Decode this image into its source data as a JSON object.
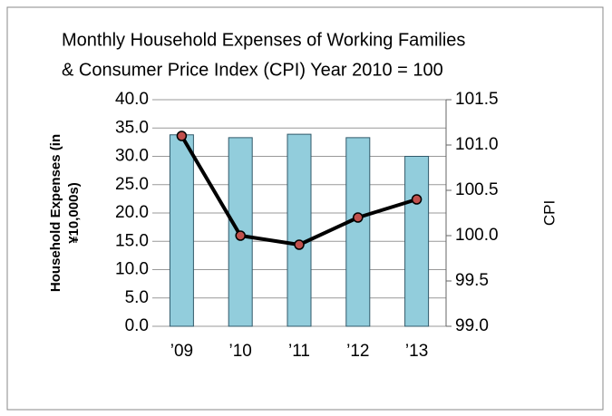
{
  "chart_data": {
    "type": "bar_line",
    "title": "Monthly Household Expenses of Working Families",
    "subtitle": "& Consumer Price Index (CPI)   Year 2010 = 100",
    "ylabel": "Household Expenses (in ¥10,000s)",
    "y2label": "CPI",
    "categories": [
      "’09",
      "’10",
      "’11",
      "’12",
      "’13"
    ],
    "series": [
      {
        "name": "Household Expenses",
        "type": "bar",
        "color": "#92cddc",
        "values": [
          33.8,
          33.3,
          33.9,
          33.3,
          30.0
        ]
      },
      {
        "name": "CPI",
        "type": "line",
        "axis": "y2",
        "color": "#000000",
        "values": [
          101.1,
          100.0,
          99.9,
          100.2,
          100.4
        ]
      }
    ],
    "ylim": [
      0,
      40
    ],
    "yticks": [
      {
        "value": 0,
        "label": "0.0"
      },
      {
        "value": 5,
        "label": "5.0"
      },
      {
        "value": 10,
        "label": "10.0"
      },
      {
        "value": 15,
        "label": "15.0"
      },
      {
        "value": 20,
        "label": "20.0"
      },
      {
        "value": 25,
        "label": "25.0"
      },
      {
        "value": 30,
        "label": "30.0"
      },
      {
        "value": 35,
        "label": "35.0"
      },
      {
        "value": 40,
        "label": "40.0"
      }
    ],
    "y2lim": [
      99,
      101.5
    ],
    "y2ticks": [
      {
        "value": 99,
        "label": "99.0"
      },
      {
        "value": 99.5,
        "label": "99.5"
      },
      {
        "value": 100,
        "label": "100.0"
      },
      {
        "value": 100.5,
        "label": "100.5"
      },
      {
        "value": 101,
        "label": "101.0"
      },
      {
        "value": 101.5,
        "label": "101.5"
      }
    ],
    "grid": true
  }
}
